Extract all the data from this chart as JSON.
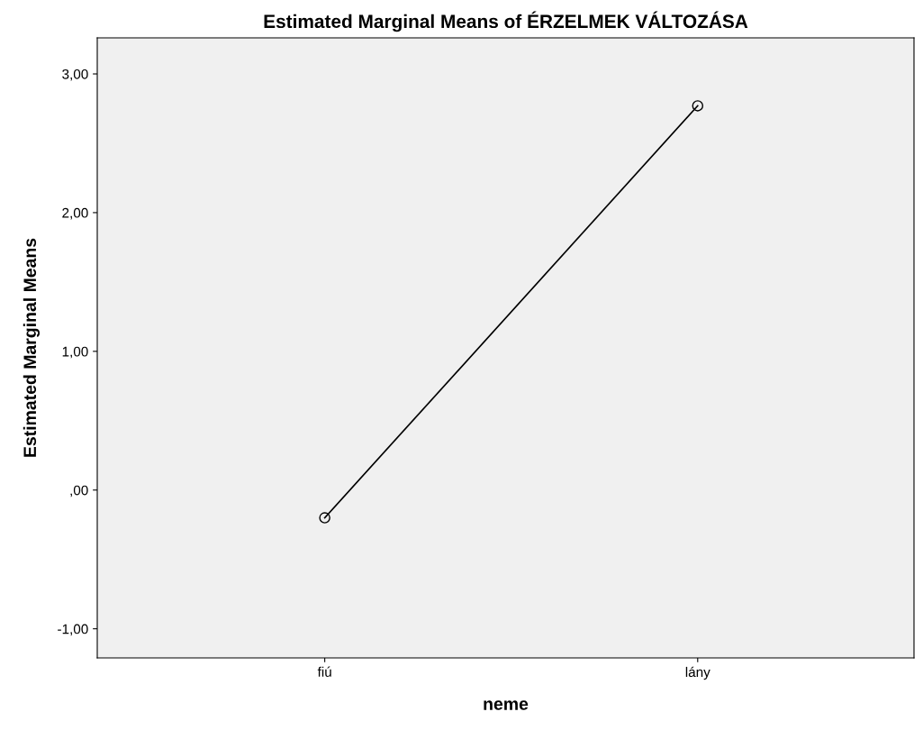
{
  "chart_data": {
    "type": "line",
    "title": "Estimated Marginal Means of ÉRZELMEK VÁLTOZÁSA",
    "xlabel": "neme",
    "ylabel": "Estimated Marginal Means",
    "categories": [
      "fiú",
      "lány"
    ],
    "series": [
      {
        "color": "#000000",
        "values": [
          -0.2,
          2.77
        ]
      }
    ],
    "ylim": [
      -1.21,
      3.26
    ],
    "yticks": [
      {
        "value": -1,
        "label": "-1,00"
      },
      {
        "value": 0,
        "label": ",00"
      },
      {
        "value": 1,
        "label": "1,00"
      },
      {
        "value": 2,
        "label": "2,00"
      },
      {
        "value": 3,
        "label": "3,00"
      }
    ],
    "marker": "circle",
    "line_style": "solid",
    "grid": false
  }
}
